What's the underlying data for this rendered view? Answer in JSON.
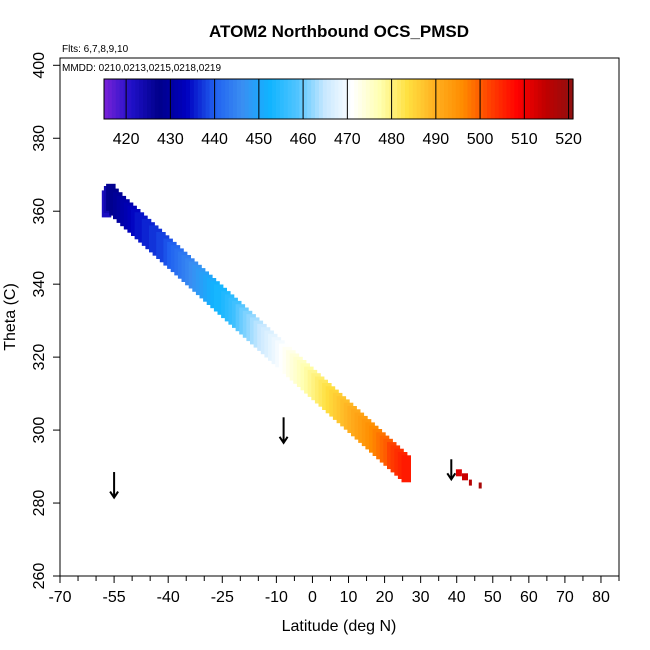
{
  "chart_data": {
    "type": "heatmap",
    "title": "ATOM2 Northbound OCS_PMSD",
    "flights_note": "Flts: 6,7,8,9,10",
    "dates_note": "MMDD: 0210,0213,0215,0218,0219",
    "xlabel": "Latitude (deg N)",
    "ylabel": "Theta (C)",
    "xlim": [
      -70,
      85
    ],
    "ylim": [
      260,
      402
    ],
    "x_ticks": [
      -70,
      -55,
      -40,
      -25,
      -10,
      0,
      10,
      20,
      30,
      40,
      50,
      60,
      70,
      80
    ],
    "y_ticks": [
      260,
      280,
      300,
      320,
      340,
      360,
      380,
      400
    ],
    "colorbar": {
      "range": [
        415,
        521
      ],
      "labels": [
        420,
        430,
        440,
        450,
        460,
        470,
        480,
        490,
        500,
        510,
        520
      ],
      "colors": [
        "#7a22d8",
        "#1f10c8",
        "#00008a",
        "#0000c0",
        "#2060f0",
        "#3a8ef2",
        "#10b4ff",
        "#50c4ff",
        "#c8e8ff",
        "#ffffff",
        "#ffffb0",
        "#ffe040",
        "#ffb020",
        "#ff8c00",
        "#ff4000",
        "#ff0000",
        "#c00000",
        "#901010"
      ]
    },
    "points": [
      [
        -57.1,
        362.0,
        422
      ],
      [
        -56.5,
        363.2,
        424
      ],
      [
        -55.9,
        363.8,
        427
      ],
      [
        -55,
        362.5,
        428
      ],
      [
        -54,
        361.5,
        429
      ],
      [
        -53,
        360.5,
        430
      ],
      [
        -52,
        359.6,
        431
      ],
      [
        -51,
        358.7,
        432
      ],
      [
        -50,
        357.8,
        433
      ],
      [
        -49,
        356.9,
        434
      ],
      [
        -48,
        356.0,
        435
      ],
      [
        -47,
        355.1,
        435
      ],
      [
        -46,
        354.2,
        436
      ],
      [
        -45,
        353.3,
        436
      ],
      [
        -44,
        352.4,
        437
      ],
      [
        -43,
        351.5,
        437
      ],
      [
        -42,
        350.6,
        438
      ],
      [
        -41,
        349.7,
        438
      ],
      [
        -40,
        348.8,
        439
      ],
      [
        -39,
        347.9,
        440
      ],
      [
        -38,
        347.0,
        441
      ],
      [
        -37,
        346.1,
        442
      ],
      [
        -36,
        345.2,
        443
      ],
      [
        -35,
        344.3,
        444
      ],
      [
        -34,
        343.4,
        445
      ],
      [
        -33,
        342.5,
        446
      ],
      [
        -32,
        341.6,
        447
      ],
      [
        -31,
        340.7,
        448
      ],
      [
        -30,
        339.8,
        449
      ],
      [
        -29,
        338.9,
        450
      ],
      [
        -28,
        338.0,
        451
      ],
      [
        -27,
        337.1,
        452
      ],
      [
        -26,
        336.2,
        453
      ],
      [
        -25,
        335.3,
        453
      ],
      [
        -24,
        334.4,
        454
      ],
      [
        -23,
        333.5,
        455
      ],
      [
        -22,
        332.6,
        456
      ],
      [
        -21,
        331.7,
        457
      ],
      [
        -20,
        330.8,
        459
      ],
      [
        -19,
        329.9,
        460
      ],
      [
        -18,
        329.0,
        461
      ],
      [
        -17,
        328.1,
        462
      ],
      [
        -16,
        327.2,
        463
      ],
      [
        -15,
        326.3,
        464
      ],
      [
        -14,
        325.4,
        465
      ],
      [
        -13,
        324.5,
        466
      ],
      [
        -12,
        323.6,
        467
      ],
      [
        -11,
        322.7,
        468
      ],
      [
        -10,
        321.8,
        469
      ],
      [
        -9,
        320.9,
        470
      ],
      [
        -8,
        320.0,
        471
      ],
      [
        -7,
        319.1,
        472
      ],
      [
        -6,
        318.2,
        473
      ],
      [
        -5,
        317.3,
        474
      ],
      [
        -4,
        316.4,
        475
      ],
      [
        -3,
        315.5,
        476
      ],
      [
        -2,
        314.6,
        477
      ],
      [
        -1,
        313.7,
        478
      ],
      [
        0,
        312.8,
        479
      ],
      [
        1,
        311.9,
        480
      ],
      [
        2,
        311.0,
        481
      ],
      [
        3,
        310.1,
        482
      ],
      [
        4,
        309.2,
        483
      ],
      [
        5,
        308.3,
        484
      ],
      [
        6,
        307.4,
        485
      ],
      [
        7,
        306.5,
        486
      ],
      [
        8,
        305.6,
        487
      ],
      [
        9,
        304.7,
        488
      ],
      [
        10,
        303.8,
        489
      ],
      [
        11,
        302.9,
        490
      ],
      [
        12,
        302.0,
        491
      ],
      [
        13,
        301.1,
        492
      ],
      [
        14,
        300.2,
        493
      ],
      [
        15,
        299.3,
        494
      ],
      [
        16,
        298.4,
        495
      ],
      [
        17,
        297.5,
        496
      ],
      [
        18,
        296.6,
        497
      ],
      [
        19,
        295.7,
        498
      ],
      [
        20,
        294.8,
        499
      ],
      [
        21,
        293.9,
        500
      ],
      [
        22,
        293.0,
        502
      ],
      [
        23,
        292.1,
        503
      ],
      [
        24,
        291.2,
        504
      ],
      [
        25,
        290.3,
        505
      ],
      [
        26,
        289.4,
        506
      ]
    ],
    "extra_marks": [
      [
        40.6,
        288.3,
        512
      ],
      [
        42.3,
        287.2,
        514
      ],
      [
        43.8,
        285.6,
        516
      ],
      [
        46.5,
        284.8,
        518
      ]
    ],
    "arrows": [
      [
        -55,
        288.5,
        281.5
      ],
      [
        -8,
        303.5,
        296.5
      ],
      [
        38.5,
        292.0,
        286.5
      ]
    ]
  }
}
